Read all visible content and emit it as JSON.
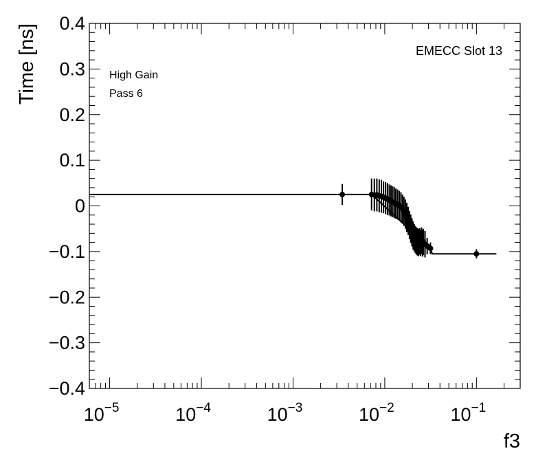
{
  "chart_data": {
    "type": "scatter",
    "title": "",
    "xlabel": "f3",
    "ylabel": "Time [ns]",
    "x_scale": "log",
    "xlim": [
      6e-06,
      0.3
    ],
    "ylim": [
      -0.4,
      0.4
    ],
    "grid": false,
    "legend": "none",
    "annotations": {
      "top_right": "EMECC Slot 13",
      "line1": "High Gain",
      "line2": "Pass 6"
    },
    "y_ticks": [
      {
        "v": 0.4,
        "label": "0.4"
      },
      {
        "v": 0.3,
        "label": "0.3"
      },
      {
        "v": 0.2,
        "label": "0.2"
      },
      {
        "v": 0.1,
        "label": "0.1"
      },
      {
        "v": 0,
        "label": "0"
      },
      {
        "v": -0.1,
        "label": "−0.1"
      },
      {
        "v": -0.2,
        "label": "−0.2"
      },
      {
        "v": -0.3,
        "label": "−0.3"
      },
      {
        "v": -0.4,
        "label": "−0.4"
      }
    ],
    "x_ticks": [
      {
        "v": 1e-05,
        "base": "10",
        "exp": "−5"
      },
      {
        "v": 0.0001,
        "base": "10",
        "exp": "−4"
      },
      {
        "v": 0.001,
        "base": "10",
        "exp": "−3"
      },
      {
        "v": 0.01,
        "base": "10",
        "exp": "−2"
      },
      {
        "v": 0.1,
        "base": "10",
        "exp": "−1"
      }
    ],
    "color": "#000000",
    "points": [
      {
        "x": 0.00344,
        "y": 0.025,
        "err": 0.023
      },
      {
        "x": 0.00718,
        "y": 0.025,
        "err": 0.035
      },
      {
        "x": 0.0077,
        "y": 0.024,
        "err": 0.036
      },
      {
        "x": 0.0082,
        "y": 0.024,
        "err": 0.036
      },
      {
        "x": 0.0087,
        "y": 0.022,
        "err": 0.036
      },
      {
        "x": 0.0092,
        "y": 0.021,
        "err": 0.036
      },
      {
        "x": 0.0097,
        "y": 0.019,
        "err": 0.035
      },
      {
        "x": 0.0102,
        "y": 0.017,
        "err": 0.035
      },
      {
        "x": 0.0107,
        "y": 0.015,
        "err": 0.035
      },
      {
        "x": 0.0112,
        "y": 0.013,
        "err": 0.034
      },
      {
        "x": 0.0117,
        "y": 0.011,
        "err": 0.034
      },
      {
        "x": 0.0122,
        "y": 0.009,
        "err": 0.034
      },
      {
        "x": 0.0127,
        "y": 0.007,
        "err": 0.034
      },
      {
        "x": 0.0132,
        "y": 0.005,
        "err": 0.033
      },
      {
        "x": 0.0138,
        "y": 0.003,
        "err": 0.033
      },
      {
        "x": 0.0144,
        "y": 0.0,
        "err": 0.033
      },
      {
        "x": 0.015,
        "y": -0.003,
        "err": 0.033
      },
      {
        "x": 0.0156,
        "y": -0.007,
        "err": 0.032
      },
      {
        "x": 0.0162,
        "y": -0.012,
        "err": 0.032
      },
      {
        "x": 0.0168,
        "y": -0.018,
        "err": 0.032
      },
      {
        "x": 0.0174,
        "y": -0.025,
        "err": 0.032
      },
      {
        "x": 0.018,
        "y": -0.033,
        "err": 0.031
      },
      {
        "x": 0.0186,
        "y": -0.042,
        "err": 0.031
      },
      {
        "x": 0.0192,
        "y": -0.05,
        "err": 0.031
      },
      {
        "x": 0.0198,
        "y": -0.058,
        "err": 0.031
      },
      {
        "x": 0.0204,
        "y": -0.065,
        "err": 0.031
      },
      {
        "x": 0.021,
        "y": -0.07,
        "err": 0.03
      },
      {
        "x": 0.0216,
        "y": -0.074,
        "err": 0.03
      },
      {
        "x": 0.0222,
        "y": -0.077,
        "err": 0.03
      },
      {
        "x": 0.0228,
        "y": -0.079,
        "err": 0.03
      },
      {
        "x": 0.0234,
        "y": -0.08,
        "err": 0.03
      },
      {
        "x": 0.024,
        "y": -0.078,
        "err": 0.029
      },
      {
        "x": 0.0246,
        "y": -0.081,
        "err": 0.029
      },
      {
        "x": 0.0252,
        "y": -0.076,
        "err": 0.029
      },
      {
        "x": 0.0258,
        "y": -0.082,
        "err": 0.029
      },
      {
        "x": 0.0264,
        "y": -0.079,
        "err": 0.029
      },
      {
        "x": 0.0275,
        "y": -0.084,
        "err": 0.029
      },
      {
        "x": 0.029,
        "y": -0.088,
        "err": 0.018
      },
      {
        "x": 0.0315,
        "y": -0.093,
        "err": 0.013
      },
      {
        "x": 0.1,
        "y": -0.105,
        "err": 0.01
      }
    ],
    "step_line": [
      {
        "x": 6e-06,
        "y": 0.025
      },
      {
        "x": 0.00344,
        "y": 0.025
      },
      {
        "x": 0.00718,
        "y": 0.025
      },
      {
        "x": 0.0315,
        "y": -0.093
      },
      {
        "x": 0.033,
        "y": -0.105
      },
      {
        "x": 0.165,
        "y": -0.105
      }
    ]
  }
}
